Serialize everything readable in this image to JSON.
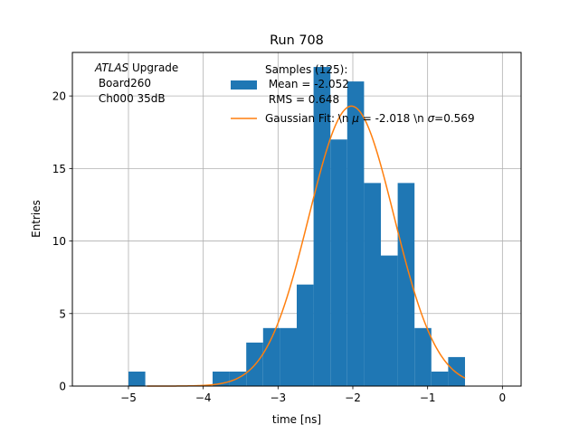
{
  "chart_data": {
    "type": "bar",
    "title": "Run 708",
    "xlabel": "time [ns]",
    "ylabel": "Entries",
    "xlim": [
      -5.75,
      0.25
    ],
    "ylim": [
      0,
      23
    ],
    "grid": true,
    "x_ticks": [
      -5,
      -4,
      -3,
      -2,
      -1,
      0
    ],
    "x_tick_labels": [
      "−5",
      "−4",
      "−3",
      "−2",
      "−1",
      "0"
    ],
    "y_ticks": [
      0,
      5,
      10,
      15,
      20
    ],
    "y_tick_labels": [
      "0",
      "5",
      "10",
      "15",
      "20"
    ],
    "bin_width": 0.225,
    "bins": [
      {
        "x": -5.0,
        "count": 1
      },
      {
        "x": -3.875,
        "count": 1
      },
      {
        "x": -3.65,
        "count": 1
      },
      {
        "x": -3.425,
        "count": 3
      },
      {
        "x": -3.2,
        "count": 4
      },
      {
        "x": -2.975,
        "count": 4
      },
      {
        "x": -2.75,
        "count": 7
      },
      {
        "x": -2.525,
        "count": 22
      },
      {
        "x": -2.3,
        "count": 17
      },
      {
        "x": -2.075,
        "count": 21
      },
      {
        "x": -1.85,
        "count": 14
      },
      {
        "x": -1.625,
        "count": 9
      },
      {
        "x": -1.4,
        "count": 14
      },
      {
        "x": -1.175,
        "count": 4
      },
      {
        "x": -0.95,
        "count": 1
      },
      {
        "x": -0.725,
        "count": 2
      }
    ],
    "series": [
      {
        "name": "Samples (125):\n Mean = -2.052\n RMS = 0.648",
        "color": "#1f77b4"
      },
      {
        "name": "Gaussian Fit: \\n $\\mu$ = -2.018 \\n $\\sigma$=0.569",
        "color": "#ff7f0e",
        "fit": {
          "amplitude": 19.3,
          "mu": -2.018,
          "sigma": 0.569,
          "x_range": [
            -4.75,
            -0.5
          ]
        }
      }
    ],
    "legend": {
      "placement": "top-center",
      "hist_lines": [
        "Samples (125):",
        " Mean = -2.052",
        " RMS = 0.648"
      ],
      "fit_label_prefix": "Gaussian Fit: \\n ",
      "fit_mu_symbol": "μ",
      "fit_label_mid": " = -2.018 \\n ",
      "fit_sigma_symbol": "σ",
      "fit_label_end": "=0.569"
    },
    "annotation": {
      "experiment": "ATLAS",
      "experiment_suffix": " Upgrade",
      "line2": " Board260",
      "line3": " Ch000 35dB"
    }
  }
}
